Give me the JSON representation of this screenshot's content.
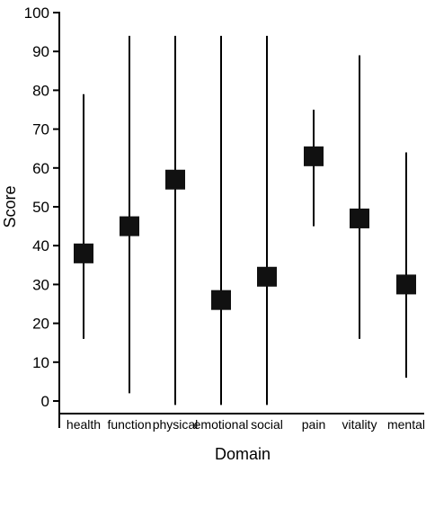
{
  "chart_data": {
    "type": "scatter",
    "style": "error-bars with square markers",
    "title": "",
    "xlabel": "Domain",
    "ylabel": "Score",
    "ylim": [
      0,
      100
    ],
    "yticks": [
      0,
      10,
      20,
      30,
      40,
      50,
      60,
      70,
      80,
      90,
      100
    ],
    "grid": false,
    "legend": "none",
    "categories": [
      "health",
      "function",
      "physical",
      "emotional",
      "social",
      "pain",
      "vitality",
      "mental"
    ],
    "series": [
      {
        "values": [
          38,
          45,
          57,
          26,
          32,
          63,
          47,
          30
        ],
        "lower": [
          16,
          2,
          -1,
          -1,
          -1,
          45,
          16,
          6
        ],
        "upper": [
          79,
          94,
          94,
          94,
          94,
          75,
          89,
          64
        ]
      }
    ],
    "colors": {
      "marker": "#111111",
      "line": "#000000"
    }
  }
}
